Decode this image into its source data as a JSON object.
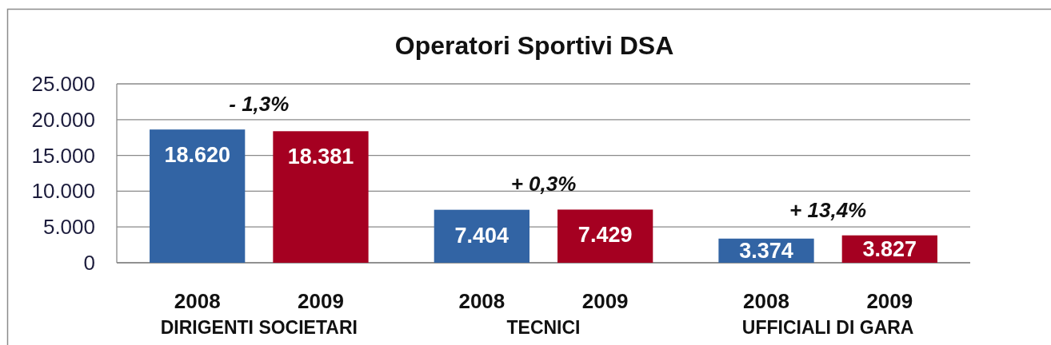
{
  "chart_data": {
    "type": "bar",
    "title": "Operatori Sportivi DSA",
    "categories": [
      "DIRIGENTI SOCIETARI",
      "TECNICI",
      "UFFICIALI DI GARA"
    ],
    "series": [
      {
        "name": "2008",
        "color": "#3264a4",
        "values": [
          18620,
          7404,
          3374
        ],
        "value_labels": [
          "18.620",
          "7.404",
          "3.374"
        ]
      },
      {
        "name": "2009",
        "color": "#a50021",
        "values": [
          18381,
          7429,
          3827
        ],
        "value_labels": [
          "18.381",
          "7.429",
          "3.827"
        ]
      }
    ],
    "ylim": [
      0,
      25000
    ],
    "yticks": [
      0,
      {
        "value": 5000,
        "label": "5.000"
      },
      {
        "value": 10000,
        "label": "10.000"
      },
      {
        "value": 15000,
        "label": "15.000"
      },
      {
        "value": 20000,
        "label": "20.000"
      },
      {
        "value": 25000,
        "label": "25.000"
      }
    ],
    "grid": "y",
    "annotations": [
      "- 1,3%",
      "+ 0,3%",
      "+ 13,4%"
    ]
  }
}
